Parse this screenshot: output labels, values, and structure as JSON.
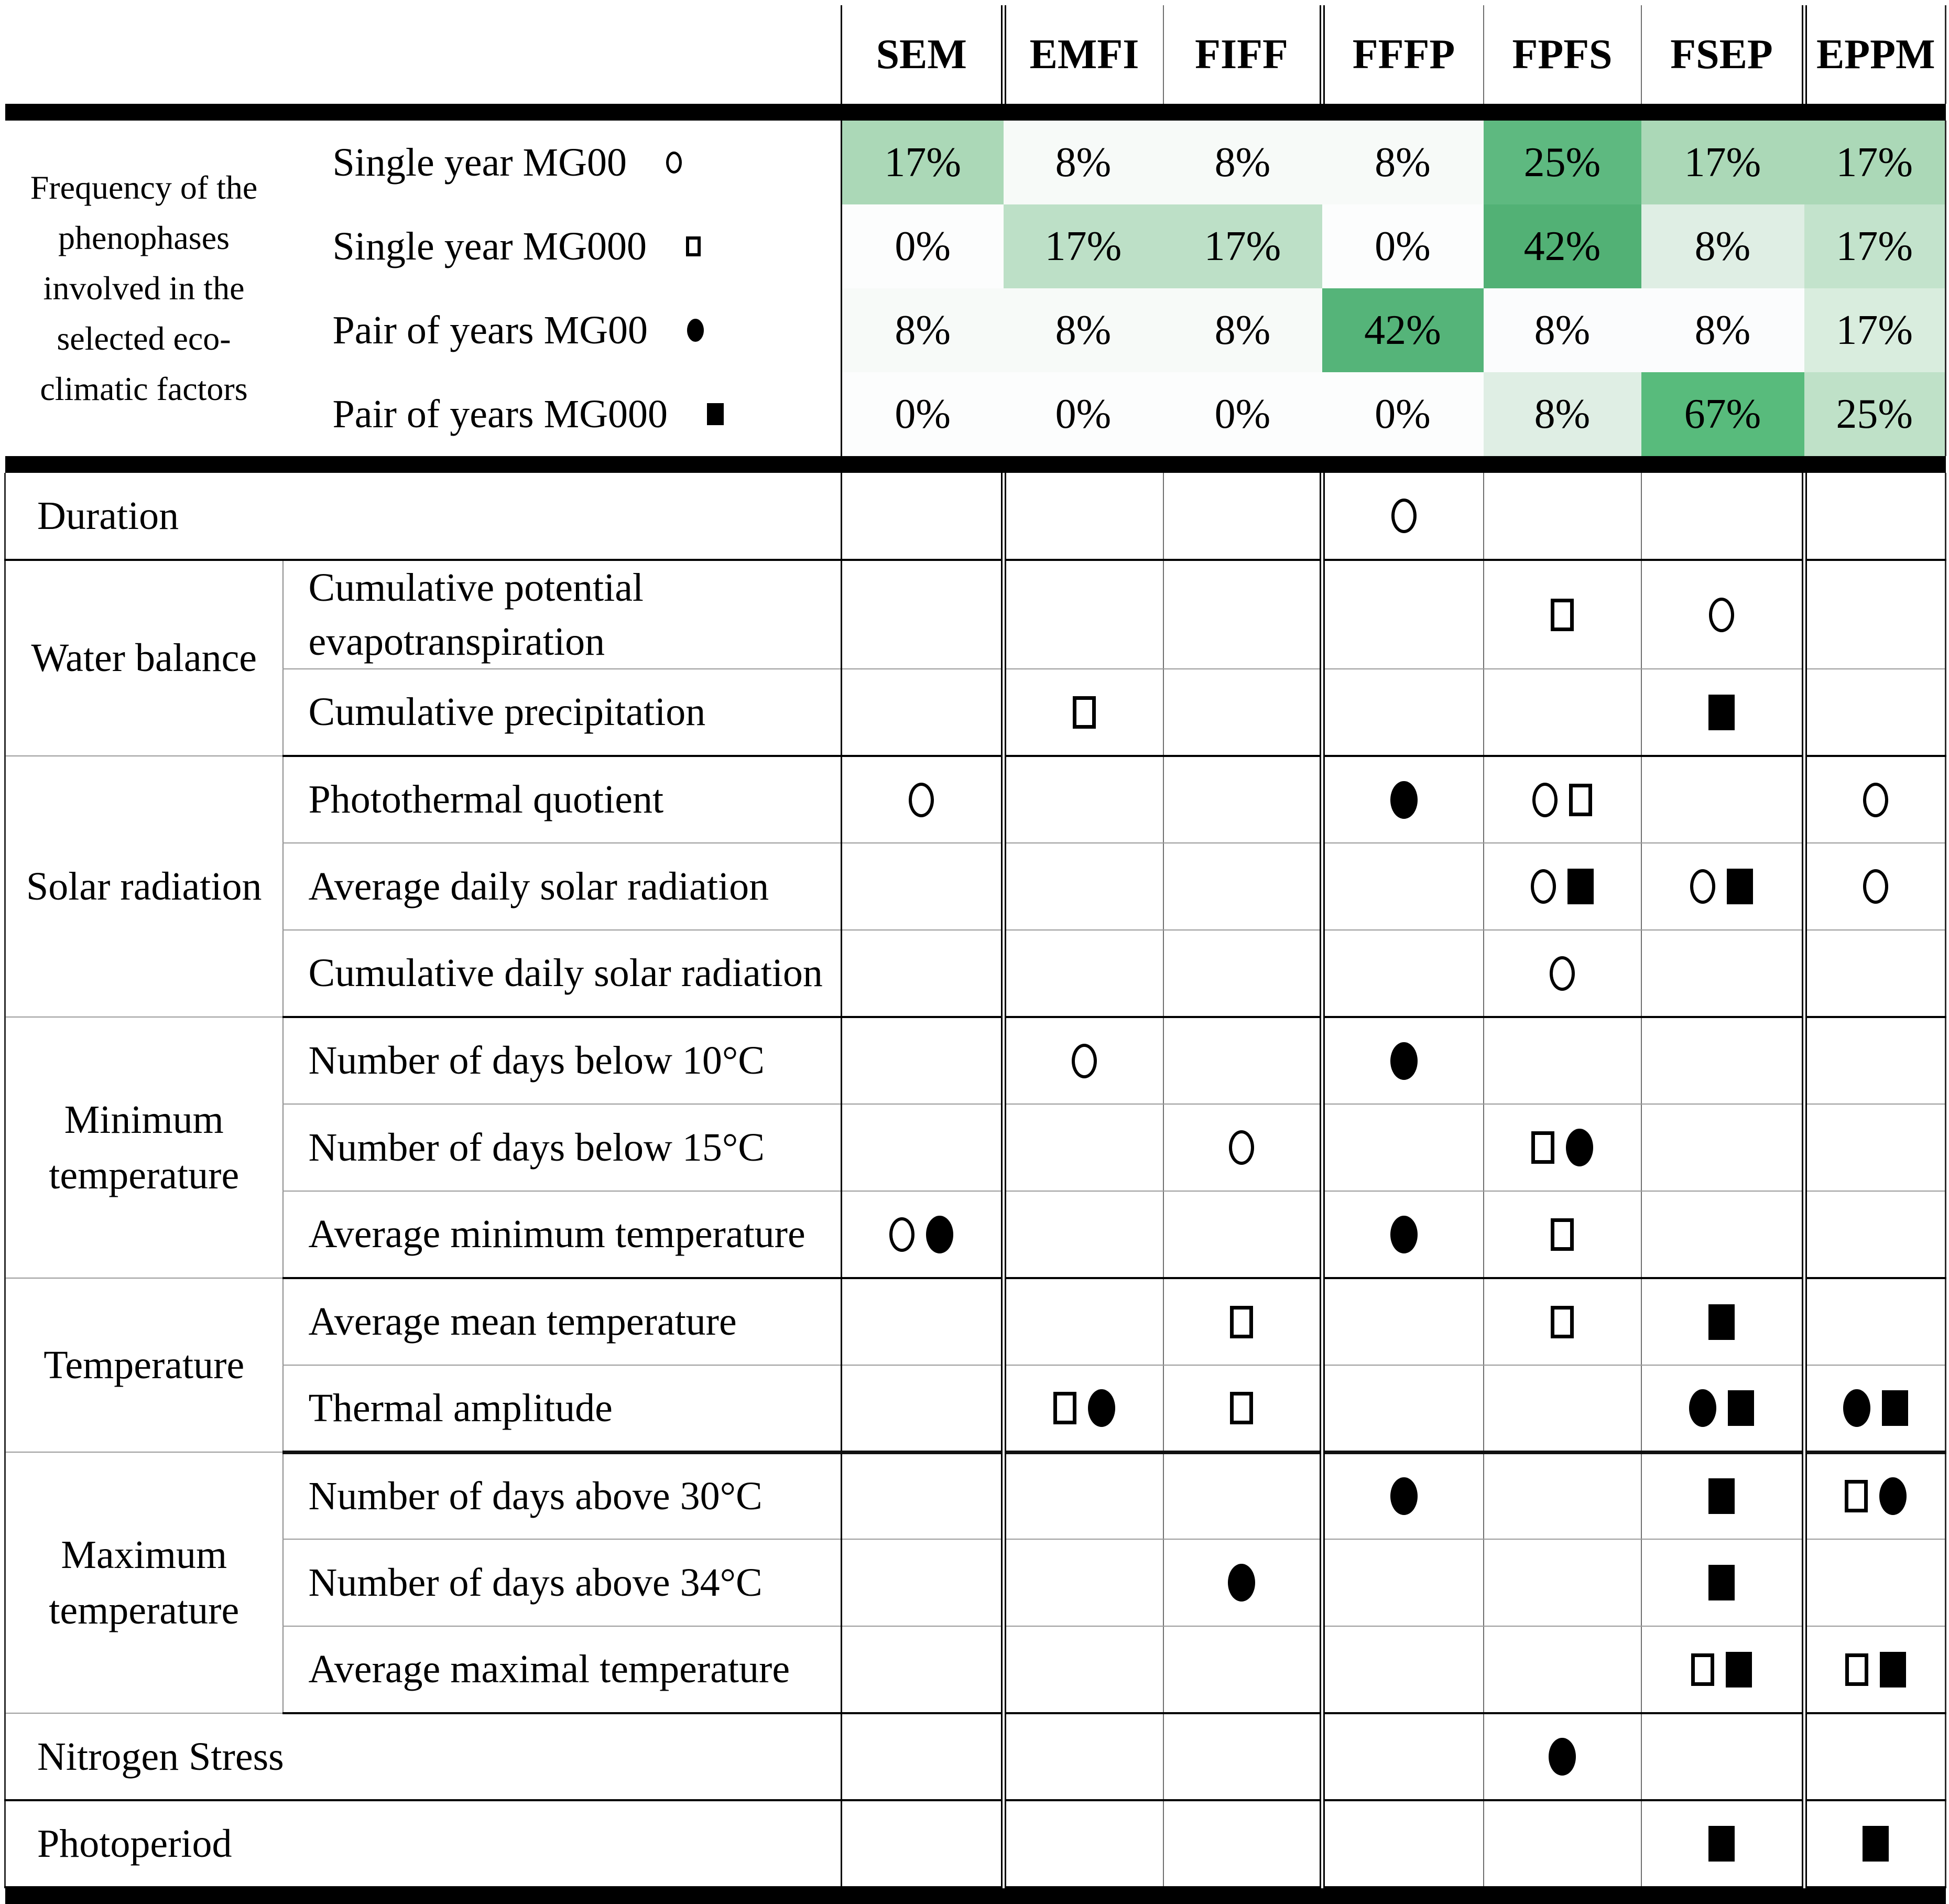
{
  "columns": [
    "SEM",
    "EMFI",
    "FIFF",
    "FFFP",
    "FPFS",
    "FSEP",
    "EPPM"
  ],
  "symbols": {
    "oc": "open-circle-icon",
    "os": "open-square-icon",
    "fc": "filled-circle-icon",
    "fs": "filled-square-icon"
  },
  "heatmap": {
    "group_label": "Frequency of the phenophases involved in the selected eco-climatic factors",
    "rows": [
      {
        "label": "Single year MG00",
        "symbol": "oc",
        "values": [
          "17%",
          "8%",
          "8%",
          "8%",
          "25%",
          "17%",
          "17%"
        ],
        "colors": [
          "#abd8b7",
          "#f7faf8",
          "#f7faf8",
          "#f7faf8",
          "#5eb980",
          "#abd8b7",
          "#abd8b7"
        ]
      },
      {
        "label": "Single year MG000",
        "symbol": "os",
        "values": [
          "0%",
          "17%",
          "17%",
          "0%",
          "42%",
          "8%",
          "17%"
        ],
        "colors": [
          "#fcfdfd",
          "#bde0c7",
          "#bde0c7",
          "#fcfdfd",
          "#52b175",
          "#dfeee4",
          "#c3e3cc"
        ]
      },
      {
        "label": "Pair of years MG00",
        "symbol": "fc",
        "values": [
          "8%",
          "8%",
          "8%",
          "42%",
          "8%",
          "8%",
          "17%"
        ],
        "colors": [
          "#f7faf8",
          "#f7faf8",
          "#f7faf8",
          "#55b479",
          "#fbfcfd",
          "#fbfcfd",
          "#d9edde"
        ]
      },
      {
        "label": "Pair of years MG000",
        "symbol": "fs",
        "values": [
          "0%",
          "0%",
          "0%",
          "0%",
          "8%",
          "67%",
          "25%"
        ],
        "colors": [
          "#fcfdfd",
          "#fcfdfd",
          "#fcfdfd",
          "#fcfdfd",
          "#dfeee4",
          "#58bb7c",
          "#bfe1c8"
        ]
      }
    ]
  },
  "matrix": {
    "rows": [
      {
        "label": "Duration",
        "full": true,
        "border": "dark",
        "cells": [
          [],
          [],
          [],
          [
            "oc"
          ],
          [],
          [],
          []
        ]
      },
      {
        "group": "Water balance",
        "group_rows": 2,
        "label": "Cumulative potential evapotranspiration",
        "border": "thin",
        "cells": [
          [],
          [],
          [],
          [],
          [
            "os"
          ],
          [
            "oc"
          ],
          []
        ]
      },
      {
        "label": "Cumulative precipitation",
        "border": "dark",
        "cells": [
          [],
          [
            "os"
          ],
          [],
          [],
          [],
          [
            "fs"
          ],
          []
        ]
      },
      {
        "group": "Solar radiation",
        "group_rows": 3,
        "label": "Photothermal quotient",
        "border": "thin",
        "cells": [
          [
            "oc"
          ],
          [],
          [],
          [
            "fc"
          ],
          [
            "oc",
            "os"
          ],
          [],
          [
            "oc"
          ]
        ]
      },
      {
        "label": "Average daily solar radiation",
        "border": "thin",
        "cells": [
          [],
          [],
          [],
          [],
          [
            "oc",
            "fs"
          ],
          [
            "oc",
            "fs"
          ],
          [
            "oc"
          ]
        ]
      },
      {
        "label": "Cumulative daily solar radiation",
        "border": "dark",
        "cells": [
          [],
          [],
          [],
          [],
          [
            "oc"
          ],
          [],
          []
        ]
      },
      {
        "group": "Minimum temperature",
        "group_rows": 3,
        "label": "Number of days below 10°C",
        "border": "thin",
        "cells": [
          [],
          [
            "oc"
          ],
          [],
          [
            "fc"
          ],
          [],
          [],
          []
        ]
      },
      {
        "label": "Number of days below 15°C",
        "border": "thin",
        "cells": [
          [],
          [],
          [
            "oc"
          ],
          [],
          [
            "os",
            "fc"
          ],
          [],
          []
        ]
      },
      {
        "label": "Average minimum temperature",
        "border": "dark",
        "cells": [
          [
            "oc",
            "fc"
          ],
          [],
          [],
          [
            "fc"
          ],
          [
            "os"
          ],
          [],
          []
        ]
      },
      {
        "group": "Temperature",
        "group_rows": 2,
        "label": "Average mean temperature",
        "border": "thin",
        "cells": [
          [],
          [],
          [
            "os"
          ],
          [],
          [
            "os"
          ],
          [
            "fs"
          ],
          []
        ]
      },
      {
        "label": "Thermal amplitude",
        "border": "thick",
        "cells": [
          [],
          [
            "os",
            "fc"
          ],
          [
            "os"
          ],
          [],
          [],
          [
            "fc",
            "fs"
          ],
          [
            "fc",
            "fs"
          ]
        ]
      },
      {
        "group": "Maximum temperature",
        "group_rows": 3,
        "label": "Number of days above 30°C",
        "border": "thin",
        "cells": [
          [],
          [],
          [],
          [
            "fc"
          ],
          [],
          [
            "fs"
          ],
          [
            "os",
            "fc"
          ]
        ]
      },
      {
        "label": "Number of days above 34°C",
        "border": "thin",
        "cells": [
          [],
          [],
          [
            "fc"
          ],
          [],
          [],
          [
            "fs"
          ],
          []
        ]
      },
      {
        "label": "Average maximal temperature",
        "border": "dark",
        "cells": [
          [],
          [],
          [],
          [],
          [],
          [
            "os",
            "fs"
          ],
          [
            "os",
            "fs"
          ]
        ]
      },
      {
        "label": "Nitrogen Stress",
        "full": true,
        "border": "dark",
        "cells": [
          [],
          [],
          [],
          [],
          [
            "fc"
          ],
          [],
          []
        ]
      },
      {
        "label": "Photoperiod",
        "full": true,
        "border": "dark",
        "cells": [
          [],
          [],
          [],
          [],
          [],
          [
            "fs"
          ],
          [
            "fs"
          ]
        ]
      }
    ]
  },
  "chart_data": {
    "type": "heatmap",
    "title": "Frequency of the phenophases involved in the selected eco-climatic factors",
    "columns": [
      "SEM",
      "EMFI",
      "FIFF",
      "FFFP",
      "FPFS",
      "FSEP",
      "EPPM"
    ],
    "rows": [
      "Single year MG00",
      "Single year MG000",
      "Pair of years MG00",
      "Pair of years MG000"
    ],
    "values_percent": [
      [
        17,
        8,
        8,
        8,
        25,
        17,
        17
      ],
      [
        0,
        17,
        17,
        0,
        42,
        8,
        17
      ],
      [
        8,
        8,
        8,
        42,
        8,
        8,
        17
      ],
      [
        0,
        0,
        0,
        0,
        8,
        67,
        25
      ]
    ],
    "legend_position": "left",
    "grid": false
  }
}
